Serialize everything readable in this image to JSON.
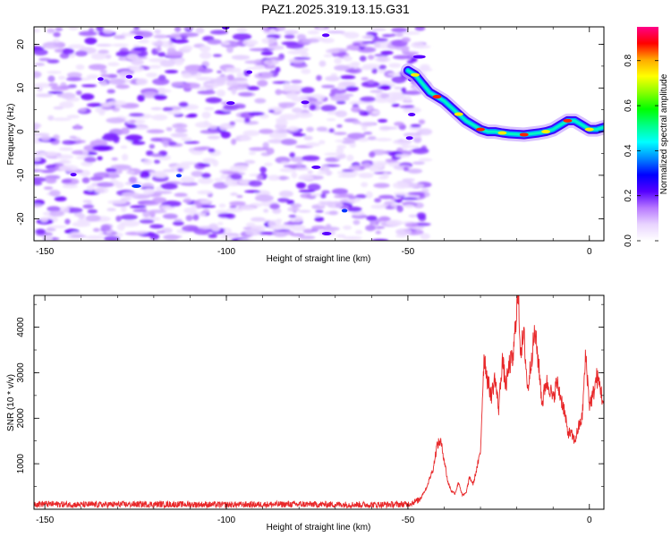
{
  "title": "PAZ1.2025.319.13.15.G31",
  "chart_data": [
    {
      "type": "heatmap",
      "name": "spectrogram",
      "xlabel": "Height of straight line (km)",
      "ylabel": "Frequency (Hz)",
      "xlim": [
        -153,
        4
      ],
      "ylim": [
        -25,
        24
      ],
      "x_ticks": [
        -150,
        -100,
        -50,
        0
      ],
      "y_ticks": [
        -20,
        -10,
        0,
        10,
        20
      ],
      "noise_region_x": [
        -153,
        -45
      ],
      "signal_trace": {
        "x": [
          -50,
          -48,
          -46,
          -44,
          -42,
          -40,
          -38,
          -36,
          -34,
          -32,
          -30,
          -28,
          -26,
          -24,
          -22,
          -20,
          -18,
          -16,
          -14,
          -12,
          -10,
          -8,
          -6,
          -4,
          -2,
          0,
          2,
          4
        ],
        "y": [
          14,
          13,
          11,
          9,
          8,
          7,
          5.5,
          4,
          2.5,
          1.5,
          0.5,
          0,
          0,
          -0.3,
          -0.5,
          -0.6,
          -0.7,
          -0.5,
          -0.3,
          0,
          0.5,
          1.5,
          2.5,
          2.5,
          1.5,
          0.5,
          0.5,
          1
        ]
      },
      "colorbar": {
        "label": "Normalized spectral amplitude",
        "ticks": [
          0.0,
          0.2,
          0.4,
          0.6,
          0.8
        ],
        "range": [
          0,
          0.95
        ],
        "colors": [
          "#ffffff",
          "#e9d4ff",
          "#b778ff",
          "#5500ff",
          "#0000ff",
          "#0088ff",
          "#00ffff",
          "#00ff88",
          "#00ff00",
          "#88ff00",
          "#ffff00",
          "#ffaa00",
          "#ff0000",
          "#ff0088"
        ]
      }
    },
    {
      "type": "line",
      "name": "snr",
      "xlabel": "Height of straight line (km)",
      "ylabel": "SNR (10 * v/v)",
      "xlim": [
        -153,
        4
      ],
      "ylim": [
        0,
        4700
      ],
      "x_ticks": [
        -150,
        -100,
        -50,
        0
      ],
      "y_ticks": [
        1000,
        2000,
        3000,
        4000
      ],
      "color": "#e8282a",
      "x": [
        -153,
        -140,
        -120,
        -100,
        -80,
        -60,
        -50,
        -47,
        -45,
        -43,
        -42,
        -41,
        -40,
        -39,
        -38,
        -37,
        -36,
        -35,
        -34,
        -33,
        -32,
        -31,
        -30,
        -29.5,
        -29,
        -28,
        -27,
        -26,
        -25,
        -24,
        -23,
        -22,
        -21,
        -20,
        -19.5,
        -19,
        -18,
        -17,
        -16,
        -15,
        -14,
        -13,
        -12,
        -11,
        -10,
        -9,
        -8,
        -7,
        -6,
        -5,
        -4,
        -3,
        -2,
        -1,
        0,
        1,
        2,
        3,
        4
      ],
      "values": [
        120,
        100,
        110,
        100,
        110,
        100,
        110,
        200,
        450,
        900,
        1400,
        1500,
        1100,
        600,
        400,
        350,
        600,
        300,
        350,
        700,
        550,
        900,
        1250,
        2400,
        3400,
        2800,
        2500,
        2900,
        2200,
        3300,
        2700,
        3200,
        3300,
        4500,
        4650,
        3500,
        3800,
        2600,
        3300,
        3900,
        3200,
        2300,
        2800,
        2700,
        2400,
        2800,
        2500,
        2200,
        1700,
        1650,
        1500,
        1800,
        2000,
        3400,
        2300,
        2500,
        2900,
        2700,
        2200
      ]
    }
  ]
}
